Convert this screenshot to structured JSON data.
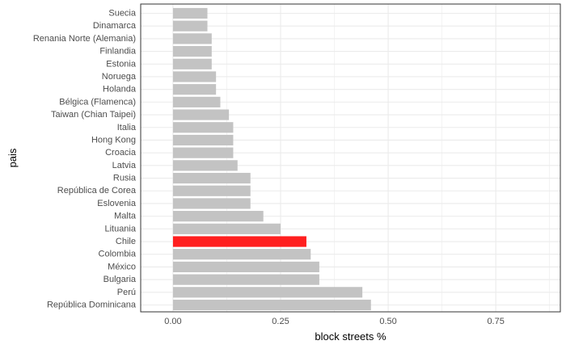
{
  "chart_data": {
    "type": "bar",
    "orientation": "horizontal",
    "title": "",
    "xlabel": "block streets %",
    "ylabel": "pais",
    "xlim": [
      -0.075,
      0.9
    ],
    "xticks": [
      0.0,
      0.25,
      0.5,
      0.75
    ],
    "xtick_labels": [
      "0.00",
      "0.25",
      "0.50",
      "0.75"
    ],
    "grid": true,
    "legend": "none",
    "colors": {
      "bar": "#c3c3c3",
      "highlight": "#ff1f1f",
      "grid": "#ebebeb",
      "panel_border": "#333333"
    },
    "highlight_category": "Chile",
    "categories": [
      "Suecia",
      "Dinamarca",
      "Renania Norte (Alemania)",
      "Finlandia",
      "Estonia",
      "Noruega",
      "Holanda",
      "Bélgica (Flamenca)",
      "Taiwan (Chian Taipei)",
      "Italia",
      "Hong Kong",
      "Croacia",
      "Latvia",
      "Rusia",
      "República de Corea",
      "Eslovenia",
      "Malta",
      "Lituania",
      "Chile",
      "Colombia",
      "México",
      "Bulgaria",
      "Perú",
      "República Dominicana"
    ],
    "values": [
      0.08,
      0.08,
      0.09,
      0.09,
      0.09,
      0.1,
      0.1,
      0.11,
      0.13,
      0.14,
      0.14,
      0.14,
      0.15,
      0.18,
      0.18,
      0.18,
      0.21,
      0.25,
      0.31,
      0.32,
      0.34,
      0.34,
      0.44,
      0.46
    ]
  }
}
